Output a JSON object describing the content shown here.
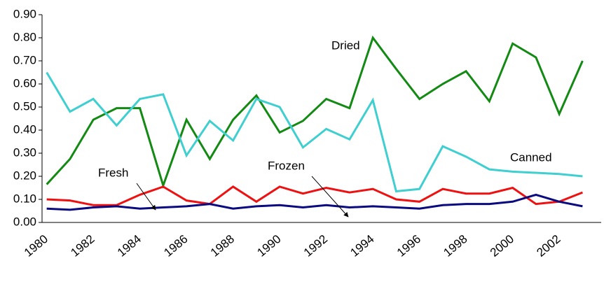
{
  "chart_data": {
    "type": "line",
    "categories": [
      "1980",
      null,
      "1982",
      null,
      "1984",
      null,
      "1986",
      null,
      "1988",
      null,
      "1990",
      null,
      "1992",
      null,
      "1994",
      null,
      "1996",
      null,
      "1998",
      null,
      "2000",
      null,
      "2002",
      null
    ],
    "ylim": [
      0,
      0.9
    ],
    "yticks": [
      {
        "value": 0,
        "label": "0.00"
      },
      {
        "value": 0.1,
        "label": "0.10"
      },
      {
        "value": 0.2,
        "label": "0.20"
      },
      {
        "value": 0.3,
        "label": "0.30"
      },
      {
        "value": 0.4,
        "label": "0.40"
      },
      {
        "value": 0.5,
        "label": "0.50"
      },
      {
        "value": 0.6,
        "label": "0.60"
      },
      {
        "value": 0.7,
        "label": "0.70"
      },
      {
        "value": 0.8,
        "label": "0.80"
      },
      {
        "value": 0.9,
        "label": "0.90"
      }
    ],
    "series": [
      {
        "name": "Dried",
        "color": "#138a13",
        "values": [
          0.165,
          0.275,
          0.445,
          0.495,
          0.495,
          0.16,
          0.445,
          0.275,
          0.445,
          0.55,
          0.39,
          0.44,
          0.535,
          0.495,
          0.8,
          0.665,
          0.535,
          0.6,
          0.655,
          0.525,
          0.775,
          0.715,
          0.47,
          0.7
        ]
      },
      {
        "name": "Canned",
        "color": "#40cfd0",
        "values": [
          0.65,
          0.48,
          0.535,
          0.42,
          0.535,
          0.555,
          0.29,
          0.44,
          0.355,
          0.535,
          0.5,
          0.325,
          0.405,
          0.36,
          0.53,
          0.135,
          0.145,
          0.33,
          0.285,
          0.23,
          0.22,
          0.215,
          0.21,
          0.2
        ]
      },
      {
        "name": "Fresh",
        "color": "#ee1111",
        "values": [
          0.1,
          0.095,
          0.075,
          0.075,
          0.12,
          0.155,
          0.095,
          0.08,
          0.155,
          0.09,
          0.155,
          0.125,
          0.15,
          0.13,
          0.145,
          0.1,
          0.09,
          0.145,
          0.125,
          0.125,
          0.15,
          0.08,
          0.09,
          0.13
        ]
      },
      {
        "name": "Frozen",
        "color": "#0a0a80",
        "values": [
          0.06,
          0.055,
          0.065,
          0.07,
          0.06,
          0.065,
          0.07,
          0.08,
          0.06,
          0.07,
          0.075,
          0.065,
          0.075,
          0.065,
          0.07,
          0.065,
          0.06,
          0.075,
          0.08,
          0.08,
          0.09,
          0.12,
          0.09,
          0.07
        ]
      }
    ]
  }
}
